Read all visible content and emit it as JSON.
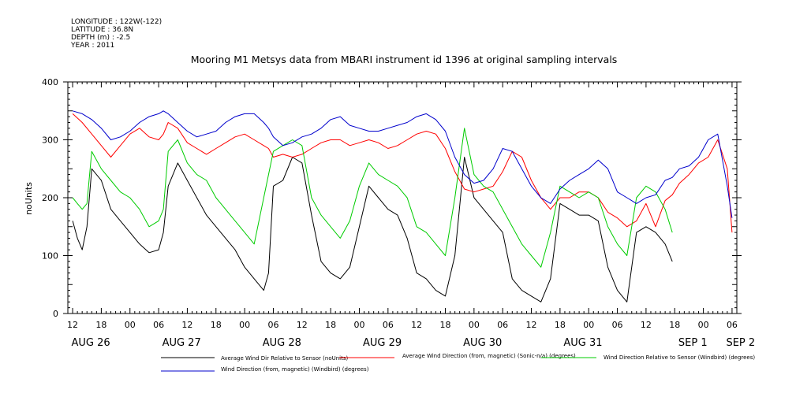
{
  "header": {
    "meta": [
      "LONGITUDE : 122W(-122)",
      "LATITUDE : 36.8N",
      "DEPTH (m) : -2.5",
      "YEAR : 2011"
    ]
  },
  "chart_data": {
    "type": "line",
    "title": "Mooring M1 Metsys data from MBARI instrument id 1396 at original sampling intervals",
    "ylabel": "noUnits",
    "xlabel": "",
    "ylim": [
      0,
      400
    ],
    "yticks": [
      0,
      100,
      200,
      300,
      400
    ],
    "xlim": [
      11,
      151
    ],
    "hour_labels": [
      "12",
      "18",
      "00",
      "06",
      "12",
      "18",
      "00",
      "06",
      "12",
      "18",
      "00",
      "06",
      "12",
      "18",
      "00",
      "06",
      "12",
      "18",
      "00",
      "06",
      "12",
      "18",
      "00",
      "06",
      "12",
      "18",
      "00",
      "06",
      "12",
      "18",
      "00",
      "06"
    ],
    "date_labels": [
      {
        "label": "AUG 26",
        "h": 12
      },
      {
        "label": "AUG 27",
        "h": 31
      },
      {
        "label": "AUG 28",
        "h": 52
      },
      {
        "label": "AUG 29",
        "h": 73
      },
      {
        "label": "AUG 30",
        "h": 94
      },
      {
        "label": "AUG 31",
        "h": 115
      },
      {
        "label": "SEP  1",
        "h": 138
      },
      {
        "label": "SEP  2",
        "h": 148
      }
    ],
    "grid": false,
    "legend_placement": "bottom",
    "series": [
      {
        "name": "Average Wind Dir Relative to Sensor (noUnits)",
        "color": "#000000",
        "x": [
          12,
          13,
          14,
          15,
          16,
          18,
          20,
          22,
          24,
          26,
          28,
          30,
          31,
          32,
          34,
          36,
          38,
          40,
          42,
          44,
          46,
          48,
          50,
          52,
          53,
          54,
          56,
          58,
          60,
          62,
          64,
          66,
          68,
          70,
          72,
          74,
          76,
          78,
          80,
          82,
          84,
          86,
          88,
          90,
          92,
          94,
          96,
          98,
          100,
          102,
          104,
          106,
          108,
          110,
          112,
          114,
          116,
          118,
          120,
          122,
          124,
          126,
          128,
          130,
          132,
          134,
          136,
          137.5
        ],
        "y": [
          160,
          130,
          110,
          150,
          250,
          230,
          180,
          160,
          140,
          120,
          105,
          110,
          140,
          220,
          260,
          230,
          200,
          170,
          150,
          130,
          110,
          80,
          60,
          40,
          70,
          220,
          230,
          270,
          260,
          170,
          90,
          70,
          60,
          80,
          150,
          220,
          200,
          180,
          170,
          130,
          70,
          60,
          40,
          30,
          100,
          270,
          200,
          180,
          160,
          140,
          60,
          40,
          30,
          20,
          60,
          190,
          180,
          170,
          170,
          160,
          80,
          40,
          20,
          140,
          150,
          140,
          120,
          90
        ]
      },
      {
        "name": "Average Wind Direction (from, magnetic) (Sonic-n/a) (degrees)",
        "color": "#ff0000",
        "x": [
          12,
          14,
          16,
          18,
          20,
          22,
          24,
          26,
          28,
          30,
          31,
          32,
          34,
          36,
          38,
          40,
          42,
          44,
          46,
          48,
          50,
          52,
          53,
          54,
          56,
          58,
          60,
          62,
          64,
          66,
          68,
          70,
          72,
          74,
          76,
          78,
          80,
          82,
          84,
          86,
          88,
          90,
          92,
          94,
          96,
          98,
          100,
          102,
          104,
          106,
          108,
          110,
          112,
          114,
          116,
          118,
          120,
          122,
          124,
          126,
          128,
          130,
          132,
          134,
          136,
          137.5,
          139,
          141,
          143,
          145,
          147,
          149,
          150
        ],
        "y": [
          345,
          330,
          310,
          290,
          270,
          290,
          310,
          320,
          305,
          300,
          310,
          330,
          320,
          295,
          285,
          275,
          285,
          295,
          305,
          310,
          300,
          290,
          285,
          270,
          275,
          270,
          275,
          285,
          295,
          300,
          300,
          290,
          295,
          300,
          295,
          285,
          290,
          300,
          310,
          315,
          310,
          285,
          245,
          215,
          210,
          215,
          220,
          245,
          280,
          270,
          230,
          200,
          180,
          200,
          200,
          210,
          210,
          200,
          175,
          165,
          150,
          160,
          190,
          150,
          195,
          205,
          225,
          240,
          260,
          270,
          300,
          250,
          140
        ]
      },
      {
        "name": "Wind Direction Relative to Sensor (Windbird) (degrees)",
        "color": "#00cc00",
        "x": [
          12,
          13,
          14,
          15,
          16,
          18,
          20,
          22,
          24,
          26,
          28,
          30,
          31,
          32,
          34,
          36,
          38,
          40,
          42,
          44,
          46,
          48,
          50,
          52,
          53,
          54,
          56,
          58,
          60,
          62,
          64,
          66,
          68,
          70,
          72,
          74,
          76,
          78,
          80,
          82,
          84,
          86,
          88,
          90,
          92,
          94,
          96,
          98,
          100,
          102,
          104,
          106,
          108,
          110,
          112,
          114,
          116,
          118,
          120,
          122,
          124,
          126,
          128,
          130,
          132,
          134,
          136,
          137.5
        ],
        "y": [
          200,
          190,
          180,
          190,
          280,
          250,
          230,
          210,
          200,
          180,
          150,
          160,
          180,
          280,
          300,
          260,
          240,
          230,
          200,
          180,
          160,
          140,
          120,
          200,
          240,
          280,
          290,
          300,
          290,
          200,
          170,
          150,
          130,
          160,
          220,
          260,
          240,
          230,
          220,
          200,
          150,
          140,
          120,
          100,
          200,
          320,
          240,
          220,
          210,
          180,
          150,
          120,
          100,
          80,
          140,
          220,
          210,
          200,
          210,
          200,
          150,
          120,
          100,
          200,
          220,
          210,
          180,
          140
        ]
      },
      {
        "name": "Wind Direction (from, magnetic) (Windbird) (degrees)",
        "color": "#0000cc",
        "x": [
          12,
          14,
          16,
          18,
          20,
          22,
          24,
          26,
          28,
          30,
          31,
          32,
          34,
          36,
          38,
          40,
          42,
          44,
          46,
          48,
          50,
          52,
          53,
          54,
          56,
          58,
          60,
          62,
          64,
          66,
          68,
          70,
          72,
          74,
          76,
          78,
          80,
          82,
          84,
          86,
          88,
          90,
          92,
          94,
          96,
          98,
          100,
          102,
          104,
          106,
          108,
          110,
          112,
          114,
          116,
          118,
          120,
          122,
          124,
          126,
          128,
          130,
          132,
          134,
          136,
          137.5,
          139,
          141,
          143,
          145,
          147,
          149,
          150
        ],
        "y": [
          350,
          345,
          335,
          320,
          300,
          305,
          315,
          330,
          340,
          345,
          350,
          345,
          330,
          315,
          305,
          310,
          315,
          330,
          340,
          345,
          345,
          330,
          320,
          305,
          290,
          295,
          305,
          310,
          320,
          335,
          340,
          325,
          320,
          315,
          315,
          320,
          325,
          330,
          340,
          345,
          335,
          315,
          270,
          240,
          225,
          230,
          250,
          285,
          280,
          250,
          220,
          200,
          190,
          215,
          230,
          240,
          250,
          265,
          250,
          210,
          200,
          190,
          200,
          205,
          230,
          235,
          250,
          255,
          270,
          300,
          310,
          220,
          165
        ]
      }
    ]
  }
}
